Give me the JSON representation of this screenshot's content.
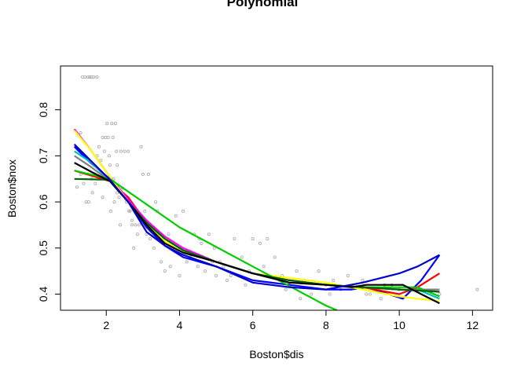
{
  "chart_data": {
    "type": "scatter",
    "title": "Polynomial",
    "xlabel": "Boston$dis",
    "ylabel": "Boston$nox",
    "xlim": [
      0.75,
      12.55
    ],
    "ylim": [
      0.365,
      0.895
    ],
    "x_ticks": [
      2,
      4,
      6,
      8,
      10,
      12
    ],
    "y_ticks": [
      0.4,
      0.5,
      0.6,
      0.7,
      0.8
    ],
    "grid": false,
    "legend": "none",
    "point_color": "#a6a6a6",
    "points": [
      [
        1.35,
        0.871
      ],
      [
        1.42,
        0.871
      ],
      [
        1.5,
        0.871
      ],
      [
        1.55,
        0.871
      ],
      [
        1.6,
        0.871
      ],
      [
        1.66,
        0.871
      ],
      [
        1.75,
        0.871
      ],
      [
        1.2,
        0.632
      ],
      [
        1.3,
        0.66
      ],
      [
        1.38,
        0.64
      ],
      [
        1.45,
        0.6
      ],
      [
        1.52,
        0.6
      ],
      [
        1.62,
        0.62
      ],
      [
        1.7,
        0.64
      ],
      [
        1.75,
        0.7
      ],
      [
        1.8,
        0.72
      ],
      [
        1.85,
        0.69
      ],
      [
        1.9,
        0.74
      ],
      [
        1.95,
        0.71
      ],
      [
        1.98,
        0.74
      ],
      [
        2.02,
        0.77
      ],
      [
        2.05,
        0.74
      ],
      [
        2.08,
        0.7
      ],
      [
        2.1,
        0.68
      ],
      [
        2.12,
        0.58
      ],
      [
        2.15,
        0.77
      ],
      [
        2.18,
        0.74
      ],
      [
        2.2,
        0.65
      ],
      [
        2.22,
        0.6
      ],
      [
        2.25,
        0.77
      ],
      [
        2.28,
        0.71
      ],
      [
        2.3,
        0.68
      ],
      [
        2.35,
        0.61
      ],
      [
        2.38,
        0.55
      ],
      [
        2.4,
        0.71
      ],
      [
        2.45,
        0.63
      ],
      [
        2.5,
        0.71
      ],
      [
        2.55,
        0.6
      ],
      [
        2.6,
        0.71
      ],
      [
        2.62,
        0.58
      ],
      [
        2.65,
        0.58
      ],
      [
        2.7,
        0.55
      ],
      [
        2.75,
        0.5
      ],
      [
        2.8,
        0.55
      ],
      [
        2.85,
        0.53
      ],
      [
        2.9,
        0.55
      ],
      [
        2.95,
        0.72
      ],
      [
        3.0,
        0.66
      ],
      [
        3.05,
        0.58
      ],
      [
        3.1,
        0.53
      ],
      [
        3.15,
        0.66
      ],
      [
        3.2,
        0.52
      ],
      [
        3.3,
        0.5
      ],
      [
        3.4,
        0.58
      ],
      [
        3.5,
        0.47
      ],
      [
        3.6,
        0.45
      ],
      [
        3.7,
        0.53
      ],
      [
        3.8,
        0.5
      ],
      [
        3.9,
        0.57
      ],
      [
        4.0,
        0.44
      ],
      [
        4.1,
        0.58
      ],
      [
        4.2,
        0.47
      ],
      [
        4.3,
        0.48
      ],
      [
        4.4,
        0.53
      ],
      [
        4.5,
        0.46
      ],
      [
        4.6,
        0.51
      ],
      [
        4.7,
        0.45
      ],
      [
        4.8,
        0.53
      ],
      [
        4.9,
        0.47
      ],
      [
        5.0,
        0.44
      ],
      [
        5.1,
        0.47
      ],
      [
        5.3,
        0.43
      ],
      [
        5.5,
        0.52
      ],
      [
        5.7,
        0.48
      ],
      [
        5.9,
        0.45
      ],
      [
        6.0,
        0.52
      ],
      [
        6.2,
        0.51
      ],
      [
        6.4,
        0.52
      ],
      [
        6.6,
        0.48
      ],
      [
        6.8,
        0.44
      ],
      [
        7.0,
        0.42
      ],
      [
        7.2,
        0.45
      ],
      [
        7.4,
        0.43
      ],
      [
        7.6,
        0.4
      ],
      [
        7.8,
        0.45
      ],
      [
        8.0,
        0.42
      ],
      [
        8.2,
        0.43
      ],
      [
        8.4,
        0.41
      ],
      [
        8.6,
        0.44
      ],
      [
        8.8,
        0.42
      ],
      [
        9.0,
        0.43
      ],
      [
        9.2,
        0.4
      ],
      [
        9.5,
        0.39
      ],
      [
        9.8,
        0.42
      ],
      [
        10.0,
        0.41
      ],
      [
        10.5,
        0.41
      ],
      [
        11.1,
        0.4
      ],
      [
        12.13,
        0.41
      ],
      [
        1.3,
        0.75
      ],
      [
        1.6,
        0.65
      ],
      [
        1.9,
        0.61
      ],
      [
        2.3,
        0.62
      ],
      [
        2.7,
        0.56
      ],
      [
        3.35,
        0.6
      ],
      [
        3.55,
        0.51
      ],
      [
        3.75,
        0.46
      ],
      [
        4.15,
        0.49
      ],
      [
        4.55,
        0.52
      ],
      [
        4.95,
        0.5
      ],
      [
        5.2,
        0.46
      ],
      [
        5.4,
        0.44
      ],
      [
        5.8,
        0.42
      ],
      [
        6.3,
        0.46
      ],
      [
        6.9,
        0.41
      ],
      [
        7.3,
        0.39
      ],
      [
        8.1,
        0.4
      ],
      [
        9.1,
        0.4
      ],
      [
        9.6,
        0.42
      ]
    ],
    "series": [
      {
        "color": "#0000ff",
        "values": [
          [
            1.13,
            0.72
          ],
          [
            1.5,
            0.69
          ],
          [
            2.1,
            0.65
          ],
          [
            2.6,
            0.6
          ],
          [
            3.1,
            0.545
          ],
          [
            3.6,
            0.505
          ],
          [
            4.1,
            0.48
          ],
          [
            5.0,
            0.46
          ],
          [
            6.0,
            0.43
          ],
          [
            7.0,
            0.42
          ],
          [
            8.0,
            0.41
          ],
          [
            8.7,
            0.41
          ],
          [
            9.1,
            0.415
          ],
          [
            10.1,
            0.39
          ],
          [
            10.6,
            0.43
          ],
          [
            11.1,
            0.485
          ]
        ]
      },
      {
        "color": "#ff0000",
        "values": [
          [
            1.13,
            0.668
          ],
          [
            2.1,
            0.645
          ],
          [
            2.6,
            0.61
          ],
          [
            3.1,
            0.555
          ],
          [
            3.6,
            0.52
          ],
          [
            4.1,
            0.495
          ],
          [
            5.0,
            0.47
          ],
          [
            6.0,
            0.445
          ],
          [
            7.0,
            0.43
          ],
          [
            8.0,
            0.42
          ],
          [
            9.0,
            0.415
          ],
          [
            10.0,
            0.4
          ],
          [
            10.5,
            0.415
          ],
          [
            11.1,
            0.445
          ]
        ]
      },
      {
        "color": "#00bfbf",
        "values": [
          [
            1.13,
            0.71
          ],
          [
            1.6,
            0.685
          ],
          [
            2.1,
            0.645
          ],
          [
            2.6,
            0.6
          ],
          [
            3.1,
            0.56
          ],
          [
            3.6,
            0.52
          ],
          [
            4.1,
            0.495
          ],
          [
            5.0,
            0.47
          ],
          [
            6.0,
            0.445
          ],
          [
            7.0,
            0.43
          ],
          [
            8.0,
            0.42
          ],
          [
            9.0,
            0.415
          ],
          [
            10.0,
            0.41
          ],
          [
            10.5,
            0.41
          ],
          [
            11.1,
            0.39
          ]
        ]
      },
      {
        "color": "#ff00ff",
        "values": [
          [
            1.13,
            0.758
          ],
          [
            1.6,
            0.71
          ],
          [
            2.1,
            0.655
          ],
          [
            2.6,
            0.605
          ],
          [
            3.1,
            0.56
          ],
          [
            3.6,
            0.525
          ],
          [
            4.1,
            0.5
          ],
          [
            5.0,
            0.47
          ],
          [
            6.0,
            0.445
          ],
          [
            7.0,
            0.43
          ],
          [
            8.0,
            0.42
          ],
          [
            9.0,
            0.415
          ],
          [
            10.0,
            0.41
          ],
          [
            10.5,
            0.41
          ],
          [
            11.1,
            0.405
          ]
        ]
      },
      {
        "color": "#ffff00",
        "values": [
          [
            1.13,
            0.755
          ],
          [
            1.6,
            0.71
          ],
          [
            2.1,
            0.655
          ],
          [
            2.6,
            0.6
          ],
          [
            3.1,
            0.55
          ],
          [
            3.6,
            0.515
          ],
          [
            4.1,
            0.49
          ],
          [
            5.0,
            0.47
          ],
          [
            6.0,
            0.445
          ],
          [
            7.0,
            0.435
          ],
          [
            8.0,
            0.425
          ],
          [
            9.0,
            0.41
          ],
          [
            10.0,
            0.395
          ],
          [
            10.5,
            0.39
          ],
          [
            11.1,
            0.385
          ]
        ]
      },
      {
        "color": "#808080",
        "values": [
          [
            1.13,
            0.7
          ],
          [
            1.6,
            0.675
          ],
          [
            2.1,
            0.645
          ],
          [
            2.6,
            0.6
          ],
          [
            3.1,
            0.555
          ],
          [
            3.6,
            0.52
          ],
          [
            4.1,
            0.495
          ],
          [
            5.0,
            0.47
          ],
          [
            6.0,
            0.445
          ],
          [
            7.0,
            0.43
          ],
          [
            8.0,
            0.42
          ],
          [
            9.0,
            0.415
          ],
          [
            10.0,
            0.41
          ],
          [
            10.5,
            0.41
          ],
          [
            11.1,
            0.41
          ]
        ]
      },
      {
        "color": "#00cc00",
        "values": [
          [
            1.13,
            0.668
          ],
          [
            2.1,
            0.65
          ],
          [
            4.0,
            0.545
          ],
          [
            6.0,
            0.46
          ],
          [
            8.0,
            0.375
          ],
          [
            8.3,
            0.365
          ]
        ]
      },
      {
        "color": "#00cc00",
        "values": [
          [
            8.0,
            0.42
          ],
          [
            9.0,
            0.415
          ],
          [
            10.0,
            0.415
          ],
          [
            10.5,
            0.415
          ],
          [
            11.1,
            0.395
          ]
        ]
      },
      {
        "color": "#006400",
        "values": [
          [
            1.13,
            0.65
          ],
          [
            2.1,
            0.648
          ],
          [
            2.6,
            0.6
          ],
          [
            3.1,
            0.555
          ],
          [
            3.6,
            0.52
          ],
          [
            4.1,
            0.495
          ],
          [
            5.0,
            0.47
          ],
          [
            6.0,
            0.445
          ],
          [
            7.0,
            0.43
          ],
          [
            8.0,
            0.42
          ],
          [
            9.0,
            0.415
          ],
          [
            10.0,
            0.41
          ],
          [
            11.1,
            0.405
          ]
        ]
      },
      {
        "color": "#000000",
        "values": [
          [
            1.13,
            0.685
          ],
          [
            1.6,
            0.665
          ],
          [
            2.1,
            0.645
          ],
          [
            2.6,
            0.6
          ],
          [
            3.1,
            0.55
          ],
          [
            3.6,
            0.51
          ],
          [
            4.1,
            0.49
          ],
          [
            5.0,
            0.47
          ],
          [
            6.0,
            0.445
          ],
          [
            7.0,
            0.425
          ],
          [
            8.0,
            0.42
          ],
          [
            8.7,
            0.415
          ],
          [
            9.1,
            0.42
          ],
          [
            10.1,
            0.42
          ],
          [
            10.6,
            0.4
          ],
          [
            11.1,
            0.38
          ]
        ]
      },
      {
        "color": "#0000cc",
        "values": [
          [
            1.13,
            0.725
          ],
          [
            2.1,
            0.648
          ],
          [
            2.6,
            0.6
          ],
          [
            3.1,
            0.535
          ],
          [
            3.6,
            0.505
          ],
          [
            4.1,
            0.485
          ],
          [
            5.0,
            0.46
          ],
          [
            6.0,
            0.425
          ],
          [
            7.0,
            0.415
          ],
          [
            8.0,
            0.41
          ],
          [
            9.0,
            0.425
          ],
          [
            10.0,
            0.445
          ],
          [
            10.5,
            0.46
          ],
          [
            11.1,
            0.485
          ]
        ]
      }
    ]
  }
}
